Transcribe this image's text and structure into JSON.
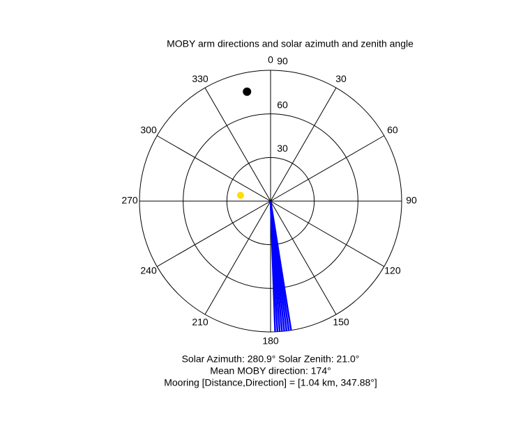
{
  "chart_data": {
    "type": "polar",
    "title": "MOBY arm directions and solar azimuth and zenith angle",
    "thetaticks": [
      0,
      30,
      60,
      90,
      120,
      150,
      180,
      210,
      240,
      270,
      300,
      330
    ],
    "rlim": [
      0,
      90
    ],
    "rticks": [
      30,
      60,
      90
    ],
    "arm_directions": [
      171,
      172,
      173,
      174,
      175,
      176,
      177,
      178
    ],
    "arm_color": "#0000ff",
    "sun": {
      "azimuth": 280.9,
      "zenith": 21.0,
      "color": "#ffdd00"
    },
    "mooring_point": {
      "direction": 347.88,
      "r": 77,
      "color": "#000000"
    },
    "annotations": [
      "Solar Azimuth: 280.9°   Solar Zenith: 21.0°",
      "Mean MOBY direction: 174°",
      "Mooring [Distance,Direction] = [1.04 km, 347.88°]"
    ]
  }
}
